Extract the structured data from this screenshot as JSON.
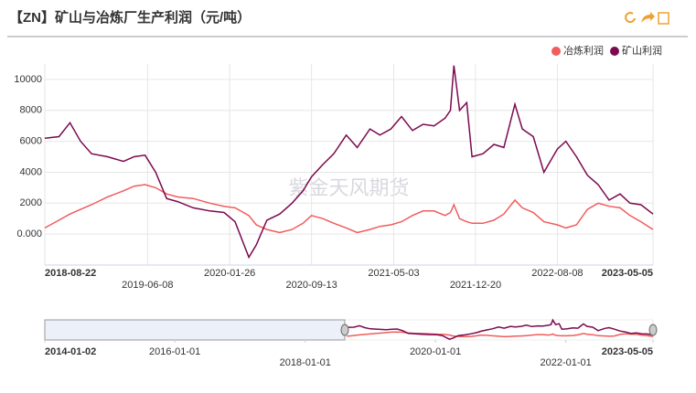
{
  "chart_data": {
    "type": "line",
    "title": "【ZN】矿山与冶炼厂生产利润（元/吨）",
    "watermark": "紫金天风期货",
    "x": [
      "2018-08-22",
      "2018-10-01",
      "2018-11-01",
      "2018-12-01",
      "2019-01-01",
      "2019-02-15",
      "2019-04-01",
      "2019-05-01",
      "2019-06-01",
      "2019-07-01",
      "2019-08-01",
      "2019-09-01",
      "2019-10-15",
      "2019-12-01",
      "2020-01-10",
      "2020-02-10",
      "2020-03-20",
      "2020-04-10",
      "2020-05-10",
      "2020-06-15",
      "2020-07-20",
      "2020-08-20",
      "2020-09-13",
      "2020-10-15",
      "2020-11-15",
      "2020-12-20",
      "2021-01-20",
      "2021-02-25",
      "2021-03-25",
      "2021-04-25",
      "2021-05-25",
      "2021-06-25",
      "2021-07-25",
      "2021-08-25",
      "2021-09-25",
      "2021-10-10",
      "2021-10-20",
      "2021-11-05",
      "2021-11-25",
      "2021-12-10",
      "2022-01-10",
      "2022-02-10",
      "2022-03-10",
      "2022-04-10",
      "2022-05-01",
      "2022-06-01",
      "2022-07-01",
      "2022-08-08",
      "2022-09-01",
      "2022-10-01",
      "2022-11-01",
      "2022-12-01",
      "2023-01-01",
      "2023-02-01",
      "2023-03-01",
      "2023-04-01",
      "2023-05-05"
    ],
    "series": [
      {
        "name": "冶炼利润",
        "color": "#f15c5c",
        "values": [
          400,
          900,
          1300,
          1600,
          1900,
          2400,
          2800,
          3100,
          3200,
          3000,
          2600,
          2400,
          2300,
          2000,
          1800,
          1700,
          1200,
          600,
          300,
          100,
          300,
          700,
          1200,
          1000,
          700,
          400,
          100,
          300,
          500,
          600,
          800,
          1200,
          1500,
          1500,
          1200,
          1400,
          1900,
          1000,
          800,
          700,
          700,
          900,
          1300,
          2200,
          1700,
          1400,
          800,
          600,
          400,
          600,
          1600,
          2000,
          1800,
          1700,
          1200,
          800,
          300
        ]
      },
      {
        "name": "矿山利润",
        "color": "#7b0a4f",
        "values": [
          6200,
          6300,
          7200,
          6000,
          5200,
          5000,
          4700,
          5000,
          5100,
          4000,
          2300,
          2100,
          1700,
          1500,
          1400,
          800,
          -1500,
          -700,
          900,
          1300,
          2000,
          2800,
          3700,
          4500,
          5200,
          6400,
          5600,
          6800,
          6400,
          6800,
          7600,
          6700,
          7100,
          7000,
          7500,
          8000,
          10900,
          8000,
          8500,
          5000,
          5200,
          5800,
          5600,
          8400,
          6800,
          6300,
          4000,
          5500,
          6000,
          5000,
          3800,
          3200,
          2200,
          2600,
          2000,
          1900,
          1300
        ]
      }
    ],
    "xlim": [
      "2018-08-22",
      "2023-05-05"
    ],
    "xticks": [
      "2018-08-22",
      "2019-06-08",
      "2020-01-26",
      "2020-09-13",
      "2021-05-03",
      "2021-12-20",
      "2022-08-08",
      "2023-05-05"
    ],
    "ylim": [
      -2000,
      11000
    ],
    "yticks": [
      {
        "value": 0,
        "label": "0.000"
      },
      2000,
      4000,
      6000,
      8000,
      10000
    ],
    "grid": true,
    "legend": "top-right",
    "navigator": {
      "xlim": [
        "2014-01-02",
        "2023-05-05"
      ],
      "xticks": [
        "2014-01-02",
        "2016-01-01",
        "2018-01-01",
        "2020-01-01",
        "2022-01-01",
        "2023-05-05"
      ]
    }
  }
}
